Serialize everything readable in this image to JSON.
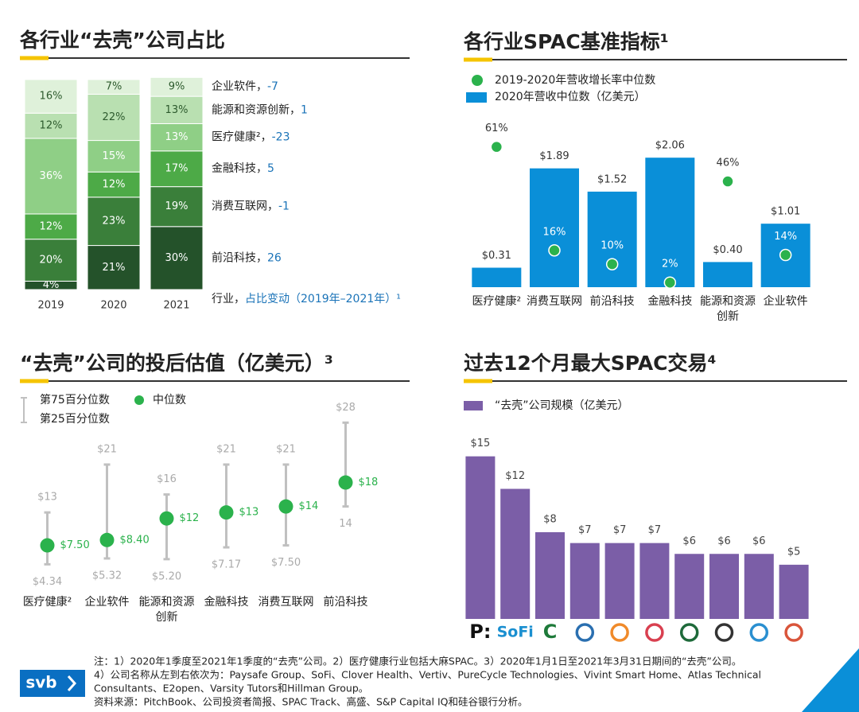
{
  "chart_data": [
    {
      "type": "stacked_bar",
      "title": "各行业“去壳”公司占比",
      "categories": [
        "2019",
        "2020",
        "2021"
      ],
      "ylim": [
        0,
        100
      ],
      "series": [
        {
          "name": "前沿科技，",
          "change": 26,
          "color": "#24522a",
          "values": [
            4,
            21,
            30
          ],
          "value_labels": [
            "4%",
            "21%",
            "30%"
          ]
        },
        {
          "name": "消费互联网，",
          "change": -1,
          "color": "#3a7f3a",
          "values": [
            20,
            23,
            19
          ],
          "value_labels": [
            "20%",
            "23%",
            "19%"
          ]
        },
        {
          "name": "金融科技，",
          "change": 5,
          "color": "#4daa47",
          "values": [
            12,
            12,
            17
          ],
          "value_labels": [
            "12%",
            "12%",
            "17%"
          ]
        },
        {
          "name": "医疗健康²，",
          "change": -23,
          "color": "#8fcf86",
          "values": [
            36,
            15,
            13
          ],
          "value_labels": [
            "36%",
            "15%",
            "13%"
          ]
        },
        {
          "name": "能源和资源创新，",
          "change": 1,
          "color": "#b9e0b1",
          "values": [
            12,
            22,
            13
          ],
          "value_labels": [
            "12%",
            "22%",
            "13%"
          ]
        },
        {
          "name": "企业软件，",
          "change": -7,
          "color": "#dff1da",
          "values": [
            16,
            7,
            9
          ],
          "value_labels": [
            "16%",
            "7%",
            "9%"
          ]
        }
      ],
      "legend_title": "行业，",
      "legend_subtitle": "占比变动（2019年–2021年）¹"
    },
    {
      "type": "bar_dot",
      "title": "各行业SPAC基准指标¹",
      "categories": [
        "医疗健康²",
        "消费互联网",
        "前沿科技",
        "金融科技",
        "能源和资源创新",
        "企业软件"
      ],
      "ylim": [
        0,
        2.67
      ],
      "y2lim": [
        0,
        73
      ],
      "series": [
        {
          "name": "2019-2020年营收增长率中位数",
          "type": "dot",
          "axis": "y2",
          "color": "#2bb24c",
          "values": [
            61,
            16,
            10,
            2,
            46,
            14
          ],
          "value_labels": [
            "61%",
            "16%",
            "10%",
            "2%",
            "46%",
            "14%"
          ]
        },
        {
          "name": "2020年营收中位数（亿美元）",
          "type": "bar",
          "color": "#0a8fd8",
          "values": [
            0.31,
            1.89,
            1.52,
            2.06,
            0.4,
            1.01
          ],
          "value_labels": [
            "$0.31",
            "$1.89",
            "$1.52",
            "$2.06",
            "$0.40",
            "$1.01"
          ]
        }
      ]
    },
    {
      "type": "range",
      "title": "“去壳”公司的投后估值（亿美元）³",
      "categories": [
        "医疗健康²",
        "企业软件",
        "能源和资源创新",
        "金融科技",
        "消费互联网",
        "前沿科技"
      ],
      "ylim": [
        0,
        29.5
      ],
      "whisker_color": "#c0c0c0",
      "series": [
        {
          "name": "第75百分位数",
          "values": [
            13,
            21,
            16,
            21,
            21,
            28
          ],
          "value_labels": [
            "$13",
            "$21",
            "$16",
            "$21",
            "$21",
            "$28"
          ]
        },
        {
          "name": "第25百分位数",
          "values": [
            4.34,
            5.32,
            5.2,
            7.17,
            7.5,
            14
          ],
          "value_labels": [
            "$4.34",
            "$5.32",
            "$5.20",
            "$7.17",
            "$7.50",
            "14"
          ]
        },
        {
          "name": "中位数",
          "color": "#2bb24c",
          "values": [
            7.5,
            8.4,
            12,
            13,
            14,
            18
          ],
          "value_labels": [
            "$7.50",
            "$8.40",
            "$12",
            "$13",
            "$14",
            "$18"
          ]
        }
      ]
    },
    {
      "type": "bar",
      "title": "过去12个月最大SPAC交易⁴",
      "categories": [
        "P:",
        "SoFi",
        "C",
        null,
        null,
        null,
        null,
        null,
        null,
        null
      ],
      "ylim": [
        0,
        16
      ],
      "series": [
        {
          "name": "“去壳”公司规模（亿美元）",
          "color": "#7b5ea7",
          "values": [
            15,
            12,
            8,
            7,
            7,
            7,
            6,
            6,
            6,
            5
          ],
          "value_labels": [
            "$15",
            "$12",
            "$8",
            "$7",
            "$7",
            "$7",
            "$6",
            "$6",
            "$6",
            "$5"
          ]
        }
      ]
    }
  ],
  "footer": {
    "logo": "svb",
    "notes": [
      "注：1）2020年1季度至2021年1季度的“去壳”公司。2）医疗健康行业包括大麻SPAC。3）2020年1月1日至2021年3月31日期间的“去壳”公司。",
      "4）公司名称从左到右依次为：Paysafe Group、SoFi、Clover Health、Vertiv、PureCycle Technologies、Vivint Smart Home、Atlas Technical",
      "Consultants、E2open、Varsity Tutors和Hillman Group。",
      "资料来源：PitchBook、公司投资者简报、SPAC Track、高盛、S&P Capital IQ和硅谷银行分析。"
    ]
  }
}
